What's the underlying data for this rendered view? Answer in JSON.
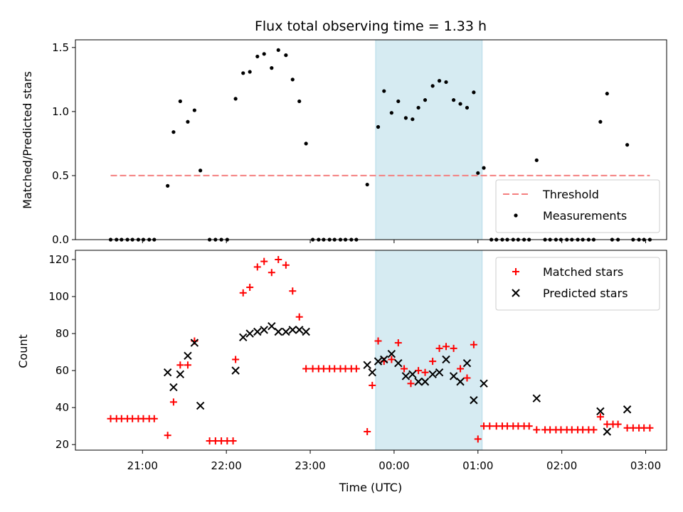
{
  "chart_data": {
    "type": "scatter",
    "title": "Flux total observing time = 1.33 h",
    "xlabel": "Time (UTC)",
    "x_ticks": [
      "21:00",
      "22:00",
      "23:00",
      "00:00",
      "01:00",
      "02:00",
      "03:00"
    ],
    "x_range_hours": [
      20.2,
      27.25
    ],
    "shaded_span_hours": [
      23.78,
      25.05
    ],
    "panels": [
      {
        "ylabel": "Matched/Predicted stars",
        "ylim": [
          0,
          1.56
        ],
        "y_ticks": [
          "0.0",
          "0.5",
          "1.0",
          "1.5"
        ],
        "legend_position": "lower-right",
        "threshold": {
          "name": "Threshold",
          "value": 0.5,
          "x_start": 20.62,
          "x_end": 27.05,
          "color": "#f47e7e"
        },
        "series": [
          {
            "name": "Measurements",
            "color": "#000000",
            "marker": "dot",
            "points": [
              [
                20.62,
                0
              ],
              [
                20.69,
                0
              ],
              [
                20.75,
                0
              ],
              [
                20.82,
                0
              ],
              [
                20.88,
                0
              ],
              [
                20.95,
                0
              ],
              [
                21.01,
                0
              ],
              [
                21.08,
                0
              ],
              [
                21.14,
                0
              ],
              [
                21.3,
                0.42
              ],
              [
                21.37,
                0.84
              ],
              [
                21.45,
                1.08
              ],
              [
                21.54,
                0.92
              ],
              [
                21.62,
                1.01
              ],
              [
                21.69,
                0.54
              ],
              [
                21.8,
                0
              ],
              [
                21.87,
                0
              ],
              [
                21.94,
                0
              ],
              [
                22.01,
                0
              ],
              [
                22.11,
                1.1
              ],
              [
                22.2,
                1.3
              ],
              [
                22.28,
                1.31
              ],
              [
                22.37,
                1.43
              ],
              [
                22.45,
                1.45
              ],
              [
                22.54,
                1.34
              ],
              [
                22.62,
                1.48
              ],
              [
                22.71,
                1.44
              ],
              [
                22.79,
                1.25
              ],
              [
                22.87,
                1.08
              ],
              [
                22.95,
                0.75
              ],
              [
                23.03,
                0
              ],
              [
                23.1,
                0
              ],
              [
                23.16,
                0
              ],
              [
                23.23,
                0
              ],
              [
                23.29,
                0
              ],
              [
                23.36,
                0
              ],
              [
                23.42,
                0
              ],
              [
                23.49,
                0
              ],
              [
                23.55,
                0
              ],
              [
                23.68,
                0.43
              ],
              [
                23.81,
                0.88
              ],
              [
                23.88,
                1.16
              ],
              [
                23.97,
                0.99
              ],
              [
                24.05,
                1.08
              ],
              [
                24.14,
                0.95
              ],
              [
                24.22,
                0.94
              ],
              [
                24.29,
                1.03
              ],
              [
                24.37,
                1.09
              ],
              [
                24.46,
                1.2
              ],
              [
                24.54,
                1.24
              ],
              [
                24.62,
                1.23
              ],
              [
                24.71,
                1.09
              ],
              [
                24.79,
                1.06
              ],
              [
                24.87,
                1.03
              ],
              [
                24.95,
                1.15
              ],
              [
                25.0,
                0.52
              ],
              [
                25.07,
                0.56
              ],
              [
                25.16,
                0
              ],
              [
                25.22,
                0
              ],
              [
                25.29,
                0
              ],
              [
                25.35,
                0
              ],
              [
                25.42,
                0
              ],
              [
                25.48,
                0
              ],
              [
                25.55,
                0
              ],
              [
                25.61,
                0
              ],
              [
                25.7,
                0.62
              ],
              [
                25.8,
                0
              ],
              [
                25.86,
                0
              ],
              [
                25.93,
                0
              ],
              [
                25.99,
                0
              ],
              [
                26.06,
                0
              ],
              [
                26.12,
                0
              ],
              [
                26.19,
                0
              ],
              [
                26.25,
                0
              ],
              [
                26.32,
                0
              ],
              [
                26.38,
                0
              ],
              [
                26.46,
                0.92
              ],
              [
                26.54,
                1.14
              ],
              [
                26.6,
                0
              ],
              [
                26.67,
                0
              ],
              [
                26.78,
                0.74
              ],
              [
                26.85,
                0
              ],
              [
                26.92,
                0
              ],
              [
                26.98,
                0
              ],
              [
                27.05,
                0
              ]
            ]
          }
        ]
      },
      {
        "ylabel": "Count",
        "ylim": [
          17,
          125
        ],
        "y_ticks": [
          "20",
          "40",
          "60",
          "80",
          "100",
          "120"
        ],
        "legend_position": "upper-right",
        "series": [
          {
            "name": "Matched stars",
            "color": "#ff0000",
            "marker": "plus",
            "points": [
              [
                20.62,
                34
              ],
              [
                20.69,
                34
              ],
              [
                20.75,
                34
              ],
              [
                20.82,
                34
              ],
              [
                20.88,
                34
              ],
              [
                20.95,
                34
              ],
              [
                21.01,
                34
              ],
              [
                21.08,
                34
              ],
              [
                21.14,
                34
              ],
              [
                21.3,
                25
              ],
              [
                21.37,
                43
              ],
              [
                21.45,
                63
              ],
              [
                21.54,
                63
              ],
              [
                21.62,
                76
              ],
              [
                21.8,
                22
              ],
              [
                21.87,
                22
              ],
              [
                21.94,
                22
              ],
              [
                22.01,
                22
              ],
              [
                22.08,
                22
              ],
              [
                22.11,
                66
              ],
              [
                22.2,
                102
              ],
              [
                22.28,
                105
              ],
              [
                22.37,
                116
              ],
              [
                22.45,
                119
              ],
              [
                22.54,
                113
              ],
              [
                22.62,
                120
              ],
              [
                22.71,
                117
              ],
              [
                22.79,
                103
              ],
              [
                22.87,
                89
              ],
              [
                22.95,
                61
              ],
              [
                23.03,
                61
              ],
              [
                23.1,
                61
              ],
              [
                23.16,
                61
              ],
              [
                23.23,
                61
              ],
              [
                23.29,
                61
              ],
              [
                23.36,
                61
              ],
              [
                23.42,
                61
              ],
              [
                23.49,
                61
              ],
              [
                23.55,
                61
              ],
              [
                23.68,
                27
              ],
              [
                23.74,
                52
              ],
              [
                23.81,
                76
              ],
              [
                23.88,
                65
              ],
              [
                23.97,
                66
              ],
              [
                24.05,
                75
              ],
              [
                24.12,
                61
              ],
              [
                24.2,
                53
              ],
              [
                24.29,
                60
              ],
              [
                24.37,
                59
              ],
              [
                24.46,
                65
              ],
              [
                24.54,
                72
              ],
              [
                24.62,
                73
              ],
              [
                24.71,
                72
              ],
              [
                24.79,
                61
              ],
              [
                24.87,
                56
              ],
              [
                24.95,
                74
              ],
              [
                25.0,
                23
              ],
              [
                25.07,
                30
              ],
              [
                25.14,
                30
              ],
              [
                25.22,
                30
              ],
              [
                25.29,
                30
              ],
              [
                25.35,
                30
              ],
              [
                25.42,
                30
              ],
              [
                25.48,
                30
              ],
              [
                25.55,
                30
              ],
              [
                25.61,
                30
              ],
              [
                25.7,
                28
              ],
              [
                25.8,
                28
              ],
              [
                25.86,
                28
              ],
              [
                25.93,
                28
              ],
              [
                25.99,
                28
              ],
              [
                26.06,
                28
              ],
              [
                26.12,
                28
              ],
              [
                26.19,
                28
              ],
              [
                26.25,
                28
              ],
              [
                26.32,
                28
              ],
              [
                26.38,
                28
              ],
              [
                26.46,
                35
              ],
              [
                26.54,
                31
              ],
              [
                26.61,
                31
              ],
              [
                26.67,
                31
              ],
              [
                26.78,
                29
              ],
              [
                26.85,
                29
              ],
              [
                26.92,
                29
              ],
              [
                26.98,
                29
              ],
              [
                27.05,
                29
              ]
            ]
          },
          {
            "name": "Predicted stars",
            "color": "#000000",
            "marker": "cross",
            "points": [
              [
                21.3,
                59
              ],
              [
                21.37,
                51
              ],
              [
                21.45,
                58
              ],
              [
                21.54,
                68
              ],
              [
                21.62,
                75
              ],
              [
                21.69,
                41
              ],
              [
                22.11,
                60
              ],
              [
                22.2,
                78
              ],
              [
                22.28,
                80
              ],
              [
                22.37,
                81
              ],
              [
                22.45,
                82
              ],
              [
                22.54,
                84
              ],
              [
                22.62,
                81
              ],
              [
                22.71,
                81
              ],
              [
                22.79,
                82
              ],
              [
                22.87,
                82
              ],
              [
                22.95,
                81
              ],
              [
                23.68,
                63
              ],
              [
                23.74,
                59
              ],
              [
                23.81,
                65
              ],
              [
                23.88,
                66
              ],
              [
                23.97,
                69
              ],
              [
                24.05,
                64
              ],
              [
                24.14,
                57
              ],
              [
                24.22,
                58
              ],
              [
                24.29,
                54
              ],
              [
                24.37,
                54
              ],
              [
                24.46,
                58
              ],
              [
                24.54,
                59
              ],
              [
                24.62,
                66
              ],
              [
                24.71,
                57
              ],
              [
                24.79,
                54
              ],
              [
                24.87,
                64
              ],
              [
                24.95,
                44
              ],
              [
                25.07,
                53
              ],
              [
                25.7,
                45
              ],
              [
                26.46,
                38
              ],
              [
                26.54,
                27
              ],
              [
                26.78,
                39
              ]
            ]
          }
        ]
      }
    ]
  },
  "colors": {
    "shade": "#add8e6",
    "threshold": "#f47e7e",
    "matched": "#ff0000",
    "predicted": "#000000"
  }
}
